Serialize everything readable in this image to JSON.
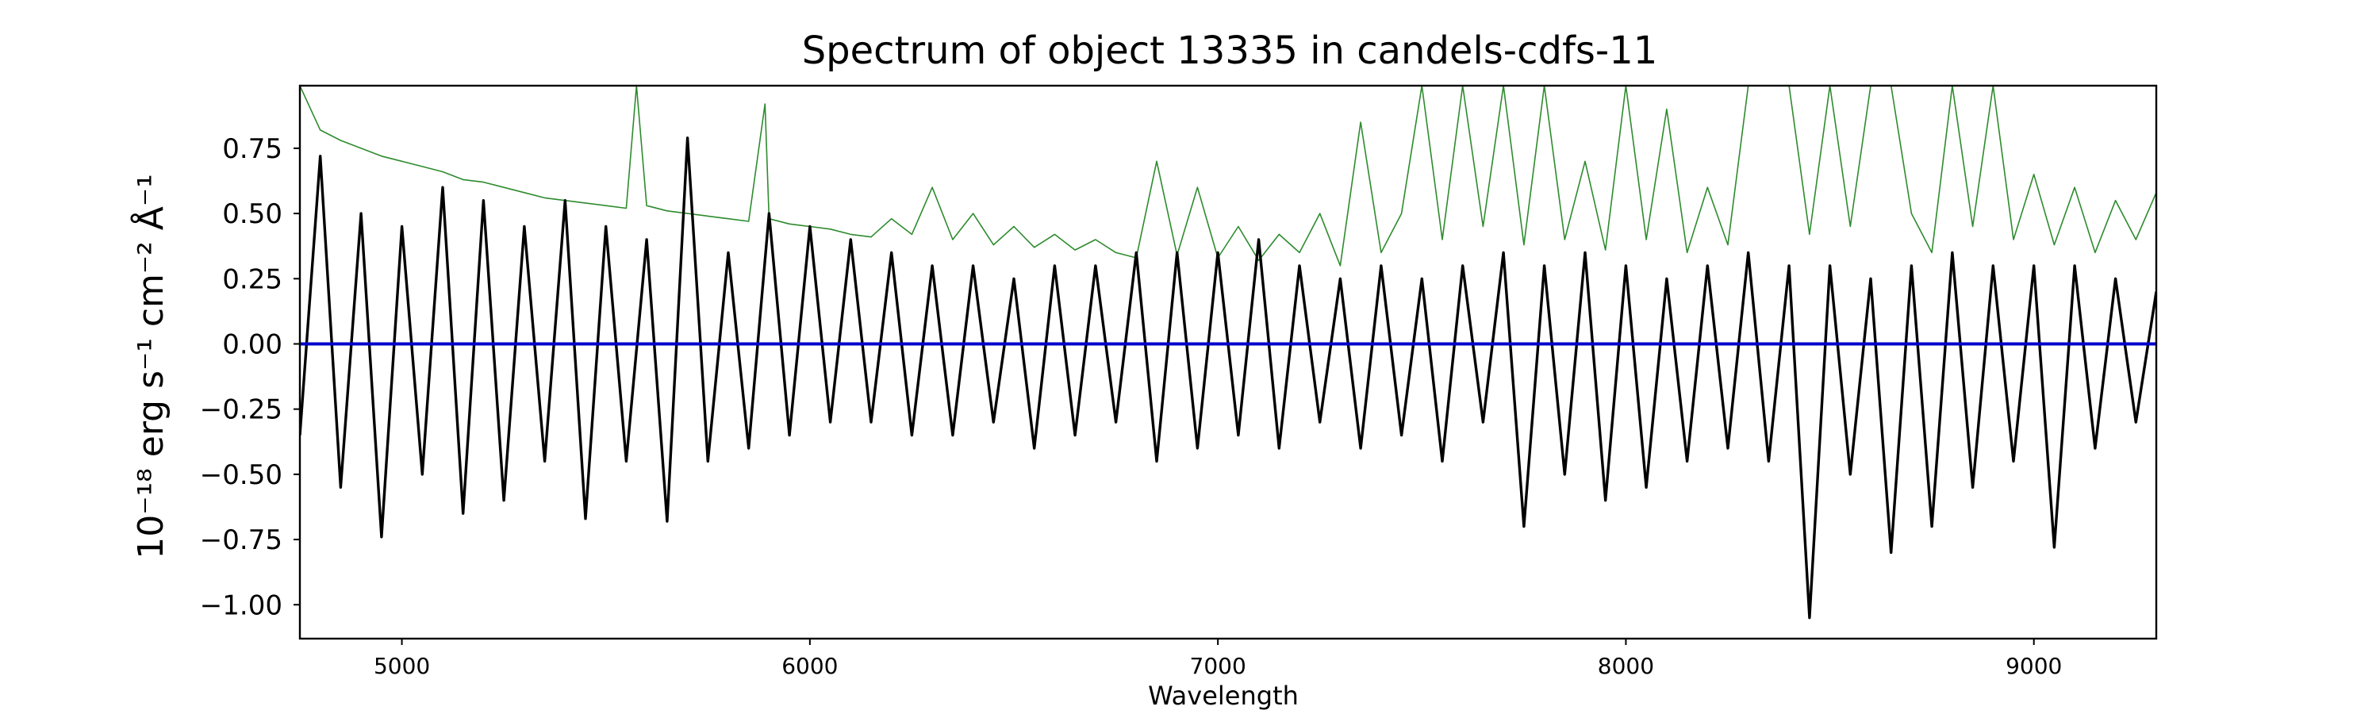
{
  "chart_data": {
    "type": "line",
    "title": "Spectrum of object 13335 in candels-cdfs-11",
    "xlabel": "Wavelength",
    "ylabel": "10⁻¹⁸ erg s⁻¹ cm⁻² Å⁻¹",
    "xlim": [
      4750,
      9300
    ],
    "ylim": [
      -1.13,
      0.99
    ],
    "xticks": [
      5000,
      6000,
      7000,
      8000,
      9000
    ],
    "yticks": [
      0.75,
      0.5,
      0.25,
      0.0,
      -0.25,
      -0.5,
      -0.75,
      -1.0
    ],
    "ytick_labels": [
      "0.75",
      "0.50",
      "0.25",
      "0.00",
      "−0.25",
      "−0.50",
      "−0.75",
      "−1.00"
    ],
    "grid": false,
    "series": [
      {
        "color": "#000000",
        "x": [
          4750,
          4800,
          4850,
          4900,
          4950,
          5000,
          5050,
          5100,
          5150,
          5200,
          5250,
          5300,
          5350,
          5400,
          5450,
          5500,
          5550,
          5600,
          5650,
          5700,
          5750,
          5800,
          5850,
          5900,
          5950,
          6000,
          6050,
          6100,
          6150,
          6200,
          6250,
          6300,
          6350,
          6400,
          6450,
          6500,
          6550,
          6600,
          6650,
          6700,
          6750,
          6800,
          6850,
          6900,
          6950,
          7000,
          7050,
          7100,
          7150,
          7200,
          7250,
          7300,
          7350,
          7400,
          7450,
          7500,
          7550,
          7600,
          7650,
          7700,
          7750,
          7800,
          7850,
          7900,
          7950,
          8000,
          8050,
          8100,
          8150,
          8200,
          8250,
          8300,
          8350,
          8400,
          8450,
          8500,
          8550,
          8600,
          8650,
          8700,
          8750,
          8800,
          8850,
          8900,
          8950,
          9000,
          9050,
          9100,
          9150,
          9200,
          9250,
          9300
        ],
        "y": [
          -0.35,
          0.72,
          -0.55,
          0.5,
          -0.74,
          0.45,
          -0.5,
          0.6,
          -0.65,
          0.55,
          -0.6,
          0.45,
          -0.45,
          0.55,
          -0.67,
          0.45,
          -0.45,
          0.4,
          -0.68,
          0.79,
          -0.45,
          0.35,
          -0.4,
          0.5,
          -0.35,
          0.45,
          -0.3,
          0.4,
          -0.3,
          0.35,
          -0.35,
          0.3,
          -0.35,
          0.3,
          -0.3,
          0.25,
          -0.4,
          0.3,
          -0.35,
          0.3,
          -0.3,
          0.35,
          -0.45,
          0.35,
          -0.4,
          0.35,
          -0.35,
          0.4,
          -0.4,
          0.3,
          -0.3,
          0.25,
          -0.4,
          0.3,
          -0.35,
          0.25,
          -0.45,
          0.3,
          -0.3,
          0.35,
          -0.7,
          0.3,
          -0.5,
          0.35,
          -0.6,
          0.3,
          -0.55,
          0.25,
          -0.45,
          0.3,
          -0.4,
          0.35,
          -0.45,
          0.3,
          -1.05,
          0.3,
          -0.5,
          0.25,
          -0.8,
          0.3,
          -0.7,
          0.35,
          -0.55,
          0.3,
          -0.45,
          0.3,
          -0.78,
          0.3,
          -0.4,
          0.25,
          -0.3,
          0.2
        ]
      },
      {
        "color": "#2e8b2e",
        "x": [
          4750,
          4800,
          4850,
          4900,
          4950,
          5000,
          5050,
          5100,
          5150,
          5200,
          5250,
          5300,
          5350,
          5400,
          5450,
          5500,
          5550,
          5575,
          5600,
          5650,
          5700,
          5750,
          5800,
          5850,
          5890,
          5900,
          5950,
          6000,
          6050,
          6100,
          6150,
          6200,
          6250,
          6300,
          6350,
          6400,
          6450,
          6500,
          6550,
          6600,
          6650,
          6700,
          6750,
          6800,
          6850,
          6900,
          6950,
          7000,
          7050,
          7100,
          7150,
          7200,
          7250,
          7300,
          7350,
          7400,
          7450,
          7500,
          7550,
          7600,
          7650,
          7700,
          7750,
          7800,
          7850,
          7900,
          7950,
          8000,
          8050,
          8100,
          8150,
          8200,
          8250,
          8300,
          8350,
          8400,
          8450,
          8500,
          8550,
          8600,
          8650,
          8700,
          8750,
          8800,
          8850,
          8900,
          8950,
          9000,
          9050,
          9100,
          9150,
          9200,
          9250,
          9300
        ],
        "y": [
          0.99,
          0.82,
          0.78,
          0.75,
          0.72,
          0.7,
          0.68,
          0.66,
          0.63,
          0.62,
          0.6,
          0.58,
          0.56,
          0.55,
          0.54,
          0.53,
          0.52,
          0.99,
          0.53,
          0.51,
          0.5,
          0.49,
          0.48,
          0.47,
          0.92,
          0.48,
          0.46,
          0.45,
          0.44,
          0.42,
          0.41,
          0.48,
          0.42,
          0.6,
          0.4,
          0.5,
          0.38,
          0.45,
          0.37,
          0.42,
          0.36,
          0.4,
          0.35,
          0.33,
          0.7,
          0.34,
          0.6,
          0.33,
          0.45,
          0.32,
          0.42,
          0.35,
          0.5,
          0.3,
          0.85,
          0.35,
          0.5,
          0.99,
          0.4,
          0.99,
          0.45,
          0.99,
          0.38,
          0.99,
          0.4,
          0.7,
          0.36,
          0.99,
          0.4,
          0.9,
          0.35,
          0.6,
          0.38,
          0.99,
          0.99,
          0.99,
          0.42,
          0.99,
          0.45,
          0.99,
          0.99,
          0.5,
          0.35,
          0.99,
          0.45,
          0.99,
          0.4,
          0.65,
          0.38,
          0.6,
          0.35,
          0.55,
          0.4,
          0.58
        ]
      },
      {
        "color": "#0000cc",
        "x": [
          4750,
          9300
        ],
        "y": [
          0.0,
          0.0
        ]
      }
    ]
  }
}
